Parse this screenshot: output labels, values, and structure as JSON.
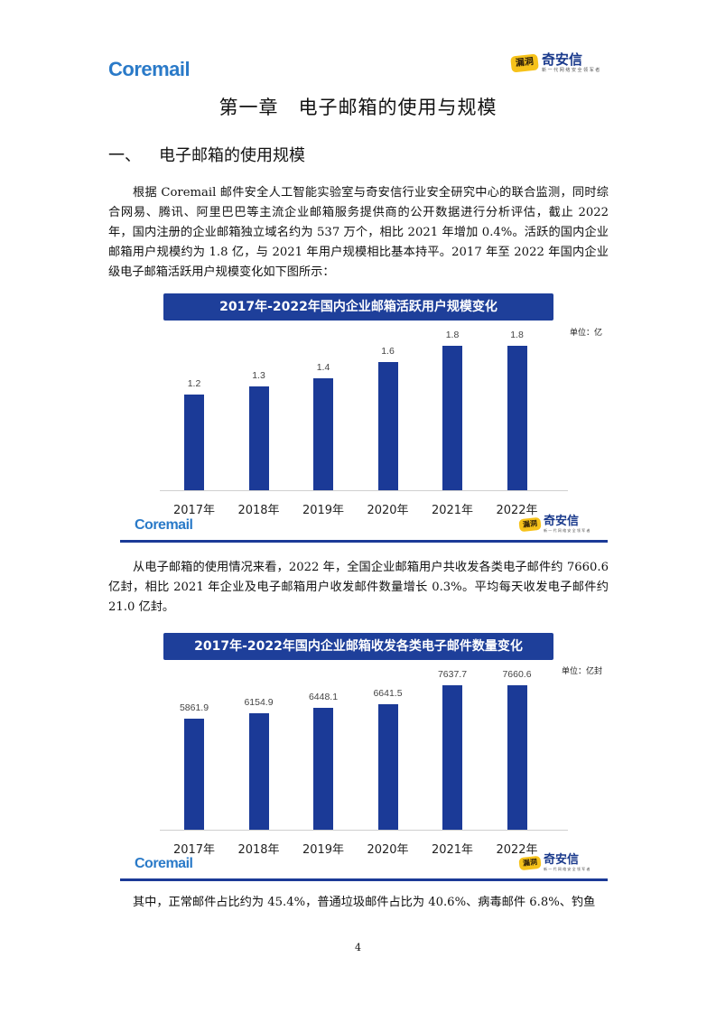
{
  "header": {
    "left_logo": "Coremail",
    "right_logo_mark": "漏洞",
    "right_logo_name": "奇安信",
    "right_logo_sub": "新 一 代 网 络 安 全 领 军 者"
  },
  "chapter_title": "第一章　电子邮箱的使用与规模",
  "section": {
    "num": "一、",
    "title": "电子邮箱的使用规模"
  },
  "paragraphs": [
    "根据 Coremail 邮件安全人工智能实验室与奇安信行业安全研究中心的联合监测，同时综合网易、腾讯、阿里巴巴等主流企业邮箱服务提供商的公开数据进行分析评估，截止 2022 年，国内注册的企业邮箱独立域名约为 537 万个，相比 2021 年增加 0.4%。活跃的国内企业邮箱用户规模约为 1.8 亿，与 2021 年用户规模相比基本持平。2017 年至 2022 年国内企业级电子邮箱活跃用户规模变化如下图所示：",
    "从电子邮箱的使用情况来看，2022 年，全国企业邮箱用户共收发各类电子邮件约 7660.6 亿封，相比 2021 年企业及电子邮箱用户收发邮件数量增长 0.3%。平均每天收发电子邮件约 21.0 亿封。",
    "其中，正常邮件占比约为 45.4%，普通垃圾邮件占比为 40.6%、病毒邮件 6.8%、钓鱼"
  ],
  "chart_data": [
    {
      "type": "bar",
      "title": "2017年-2022年国内企业邮箱活跃用户规模变化",
      "unit": "单位：亿",
      "categories": [
        "2017年",
        "2018年",
        "2019年",
        "2020年",
        "2021年",
        "2022年"
      ],
      "values": [
        1.2,
        1.3,
        1.4,
        1.6,
        1.8,
        1.8
      ],
      "value_labels": [
        "1.2",
        "1.3",
        "1.4",
        "1.6",
        "1.8",
        "1.8"
      ],
      "ylim": [
        0,
        2.03
      ],
      "color": "#1b3a97",
      "footer_logo_left": "Coremail",
      "footer_logo_right": "奇安信"
    },
    {
      "type": "bar",
      "title": "2017年-2022年国内企业邮箱收发各类电子邮件数量变化",
      "unit": "单位：亿封",
      "categories": [
        "2017年",
        "2018年",
        "2019年",
        "2020年",
        "2021年",
        "2022年"
      ],
      "values": [
        5861.9,
        6154.9,
        6448.1,
        6641.5,
        7637.7,
        7660.6
      ],
      "value_labels": [
        "5861.9",
        "6154.9",
        "6448.1",
        "6641.5",
        "7637.7",
        "7660.6"
      ],
      "ylim": [
        0,
        8600
      ],
      "color": "#1b3a97",
      "footer_logo_left": "Coremail",
      "footer_logo_right": "奇安信"
    }
  ],
  "page_number": "4"
}
